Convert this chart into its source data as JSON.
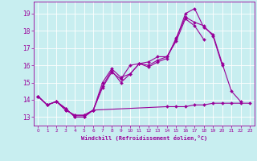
{
  "xlabel": "Windchill (Refroidissement éolien,°C)",
  "background_color": "#c8eef0",
  "line_color": "#990099",
  "xlim": [
    -0.5,
    23.5
  ],
  "ylim": [
    12.5,
    19.7
  ],
  "yticks": [
    13,
    14,
    15,
    16,
    17,
    18,
    19
  ],
  "xticks": [
    0,
    1,
    2,
    3,
    4,
    5,
    6,
    7,
    8,
    9,
    10,
    11,
    12,
    13,
    14,
    15,
    16,
    17,
    18,
    19,
    20,
    21,
    22,
    23
  ],
  "series": [
    {
      "x": [
        0,
        1,
        2,
        3,
        4,
        5,
        6,
        7,
        8,
        9,
        10,
        11,
        12,
        13,
        14,
        15,
        16,
        17,
        18,
        19,
        20,
        21,
        22
      ],
      "y": [
        14.2,
        13.7,
        13.9,
        13.4,
        13.1,
        13.1,
        13.4,
        15.0,
        15.8,
        15.3,
        15.5,
        16.1,
        16.2,
        16.5,
        16.5,
        17.5,
        19.0,
        19.3,
        18.2,
        17.8,
        16.1,
        14.5,
        13.9
      ]
    },
    {
      "x": [
        0,
        1,
        2,
        3,
        4,
        5,
        6,
        7,
        8,
        9,
        10,
        11,
        12,
        13,
        14,
        15,
        16,
        17,
        18,
        19,
        20
      ],
      "y": [
        14.2,
        13.7,
        13.9,
        13.5,
        13.0,
        13.0,
        13.4,
        14.7,
        15.6,
        15.2,
        16.0,
        16.1,
        15.9,
        16.2,
        16.4,
        17.6,
        18.8,
        18.5,
        18.3,
        17.7,
        16.0
      ]
    },
    {
      "x": [
        0,
        1,
        2,
        3,
        4,
        5,
        6,
        7,
        8,
        9,
        10,
        11,
        12,
        13,
        14,
        15,
        16,
        17,
        18
      ],
      "y": [
        14.2,
        13.7,
        13.9,
        13.5,
        13.0,
        13.0,
        13.4,
        14.8,
        15.7,
        15.0,
        15.5,
        16.1,
        16.0,
        16.3,
        16.5,
        17.4,
        18.7,
        18.3,
        17.5
      ]
    },
    {
      "x": [
        0,
        1,
        2,
        3,
        4,
        5,
        6,
        14,
        15,
        16,
        17,
        18,
        19,
        20,
        21,
        22,
        23
      ],
      "y": [
        14.2,
        13.7,
        13.9,
        13.4,
        13.1,
        13.1,
        13.4,
        13.6,
        13.6,
        13.6,
        13.7,
        13.7,
        13.8,
        13.8,
        13.8,
        13.8,
        13.8
      ]
    }
  ]
}
